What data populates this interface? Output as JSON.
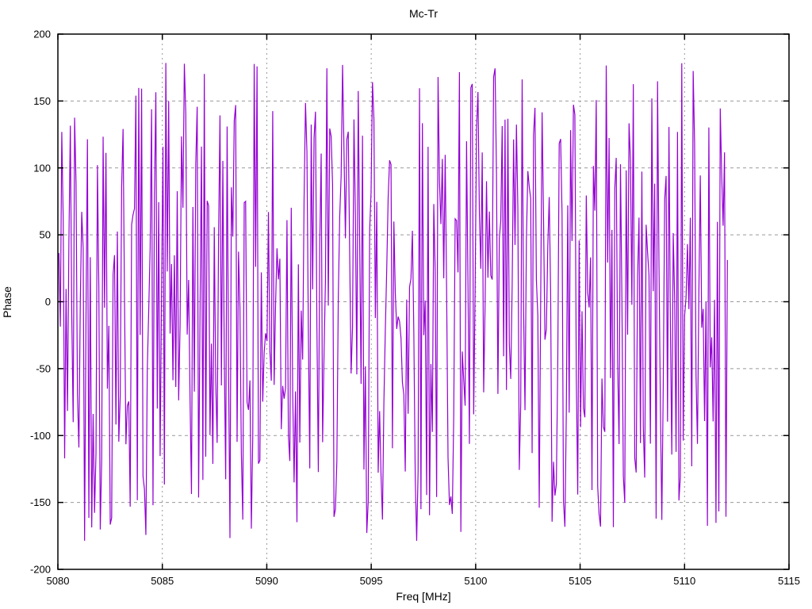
{
  "chart_data": {
    "type": "line",
    "title": "Mc-Tr",
    "xlabel": "Freq [MHz]",
    "ylabel": "Phase",
    "xlim": [
      5080,
      5115
    ],
    "ylim": [
      -200,
      200
    ],
    "x_ticks": [
      5080,
      5085,
      5090,
      5095,
      5100,
      5105,
      5110,
      5115
    ],
    "y_ticks": [
      -200,
      -150,
      -100,
      -50,
      0,
      50,
      100,
      150,
      200
    ],
    "grid": true,
    "grid_color": "#999999",
    "border_color": "#000000",
    "line_color": "#9400d3",
    "legend": "none",
    "series": [
      {
        "name": "Mc-Tr phase",
        "description": "Densely sampled wrapped phase; values fluctuate pseudo-randomly across the full wrap range",
        "x_start": 5080.05,
        "x_end": 5112.05,
        "n_points": 470,
        "y_min": -180,
        "y_max": 180,
        "distribution": "uniform-wrapped-phase",
        "seed": 42
      }
    ]
  }
}
